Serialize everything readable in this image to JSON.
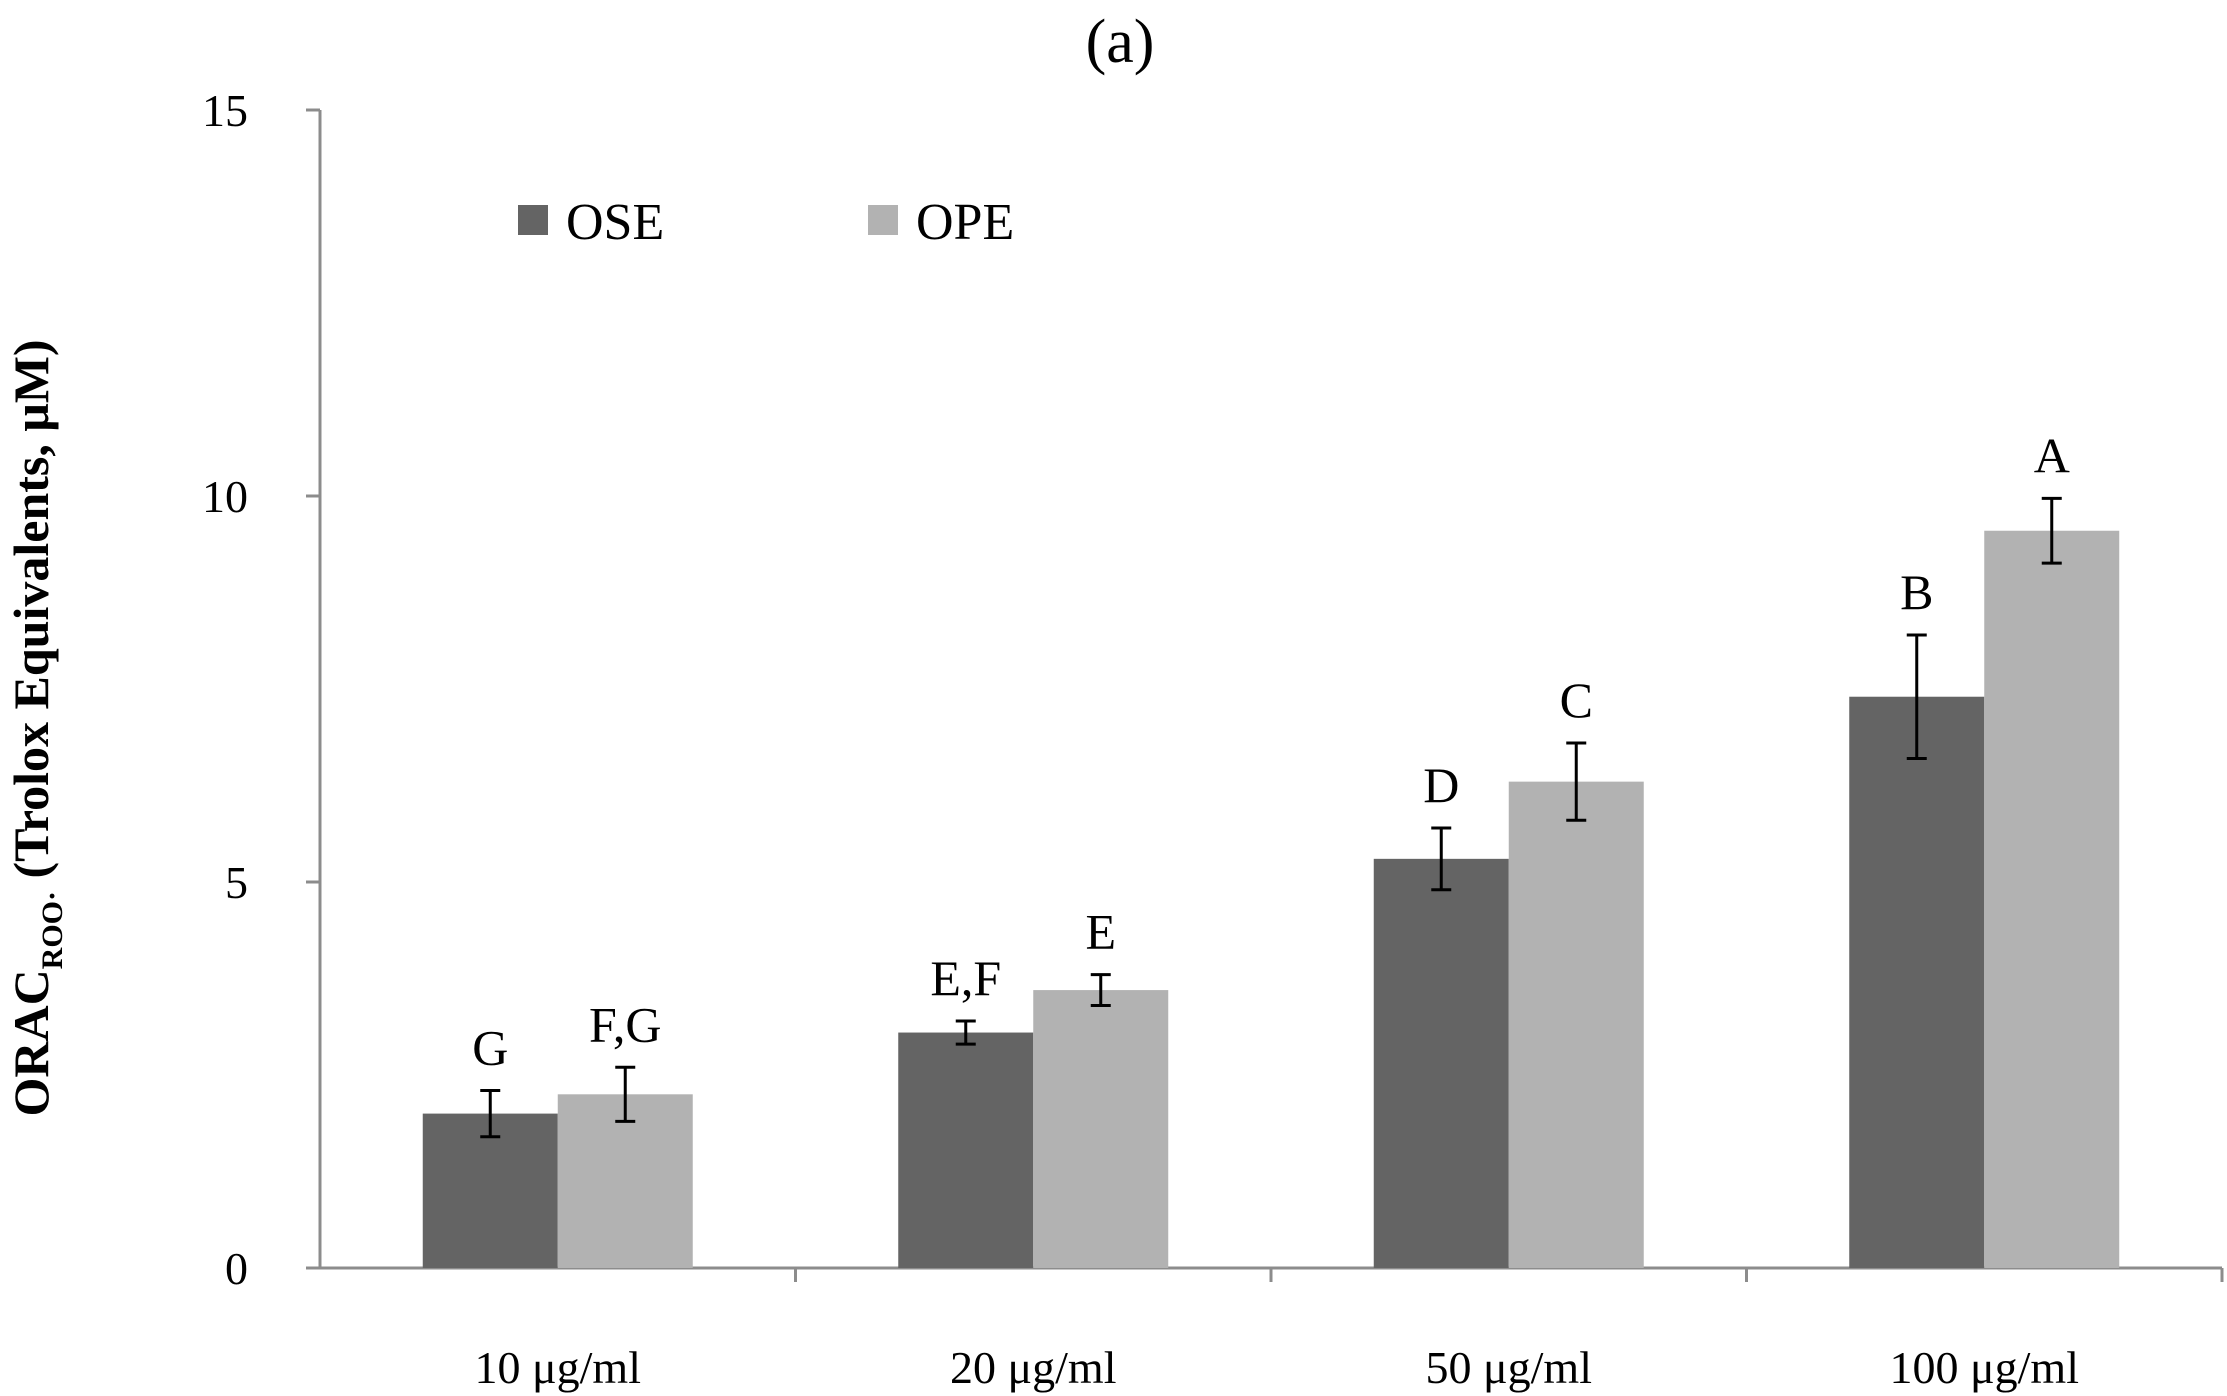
{
  "chart_data": {
    "type": "bar",
    "title": "(a)",
    "xlabel": "",
    "ylabel": {
      "main": "ORAC",
      "subscript": "ROO·",
      "rest": " (Trolox Equivalents, μM)"
    },
    "ylim": [
      0,
      15
    ],
    "yticks": [
      "0",
      "5",
      "10",
      "15"
    ],
    "ytick_values": [
      0,
      5,
      10,
      15
    ],
    "categories": [
      "10 μg/ml",
      "20 μg/ml",
      "50 μg/ml",
      "100 μg/ml"
    ],
    "series": [
      {
        "name": "OSE",
        "color": "#646464",
        "values": [
          2.0,
          3.05,
          5.3,
          7.4
        ],
        "errors": [
          0.3,
          0.15,
          0.4,
          0.8
        ],
        "labels": [
          "G",
          "E,F",
          "D",
          "B"
        ]
      },
      {
        "name": "OPE",
        "color": "#b2b2b2",
        "values": [
          2.25,
          3.6,
          6.3,
          9.55
        ],
        "errors": [
          0.35,
          0.2,
          0.5,
          0.42
        ],
        "labels": [
          "F,G",
          "E",
          "C",
          "A"
        ]
      }
    ],
    "legend_position": "top-left",
    "grid": false
  }
}
